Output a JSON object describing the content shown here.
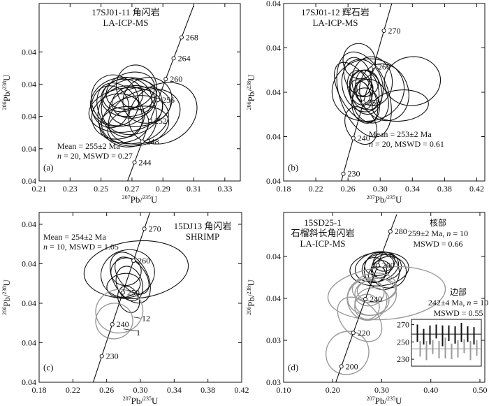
{
  "chart_data": [
    {
      "panel": "(a)",
      "type": "scatter",
      "subtype": "concordia-ellipses",
      "title_lines": [
        "17SJ01-11 角闪岩",
        "LA-ICP-MS"
      ],
      "stats_lines": [
        "Mean = 255±2 Ma",
        "n = 20, MSWD = 0.27"
      ],
      "xlabel": "207Pb/235U",
      "ylabel": "206Pb/238U",
      "xlim": [
        0.21,
        0.34
      ],
      "ylim": [
        0.038,
        0.0435
      ],
      "xticks": [
        0.21,
        0.23,
        0.25,
        0.27,
        0.29,
        0.31,
        0.33
      ],
      "yticks": [
        0.038,
        0.039,
        0.04,
        0.041,
        0.042
      ],
      "concordia_ages": [
        244,
        248,
        252,
        256,
        260,
        264,
        268
      ],
      "concordia_range": [
        238,
        274
      ],
      "ellipses": [
        {
          "cx": 0.263,
          "cy": 0.04045,
          "rx": 0.02,
          "ry": 0.00075,
          "angle": -12
        },
        {
          "cx": 0.266,
          "cy": 0.0402,
          "rx": 0.024,
          "ry": 0.00068,
          "angle": -8
        },
        {
          "cx": 0.27,
          "cy": 0.0403,
          "rx": 0.02,
          "ry": 0.00085,
          "angle": -20
        },
        {
          "cx": 0.261,
          "cy": 0.04,
          "rx": 0.017,
          "ry": 0.0007,
          "angle": -10
        },
        {
          "cx": 0.268,
          "cy": 0.0406,
          "rx": 0.018,
          "ry": 0.0006,
          "angle": -5
        },
        {
          "cx": 0.272,
          "cy": 0.0399,
          "rx": 0.022,
          "ry": 0.00072,
          "angle": -15
        },
        {
          "cx": 0.259,
          "cy": 0.0405,
          "rx": 0.015,
          "ry": 0.0008,
          "angle": -25
        },
        {
          "cx": 0.275,
          "cy": 0.0403,
          "rx": 0.02,
          "ry": 0.0006,
          "angle": -8
        },
        {
          "cx": 0.265,
          "cy": 0.03975,
          "rx": 0.016,
          "ry": 0.00055,
          "angle": -10
        },
        {
          "cx": 0.269,
          "cy": 0.0408,
          "rx": 0.016,
          "ry": 0.00055,
          "angle": -18
        },
        {
          "cx": 0.278,
          "cy": 0.04,
          "rx": 0.024,
          "ry": 0.0008,
          "angle": -22
        },
        {
          "cx": 0.262,
          "cy": 0.0402,
          "rx": 0.013,
          "ry": 0.0009,
          "angle": -30
        },
        {
          "cx": 0.271,
          "cy": 0.04045,
          "rx": 0.014,
          "ry": 0.0005,
          "angle": -10
        },
        {
          "cx": 0.267,
          "cy": 0.04,
          "rx": 0.019,
          "ry": 0.00095,
          "angle": -14
        },
        {
          "cx": 0.256,
          "cy": 0.0403,
          "rx": 0.012,
          "ry": 0.00065,
          "angle": -6
        },
        {
          "cx": 0.28,
          "cy": 0.0405,
          "rx": 0.016,
          "ry": 0.0007,
          "angle": -20
        },
        {
          "cx": 0.29,
          "cy": 0.0401,
          "rx": 0.023,
          "ry": 0.0009,
          "angle": -30
        },
        {
          "cx": 0.274,
          "cy": 0.0397,
          "rx": 0.02,
          "ry": 0.0006,
          "angle": -12
        },
        {
          "cx": 0.273,
          "cy": 0.0409,
          "rx": 0.013,
          "ry": 0.0007,
          "angle": -16
        },
        {
          "cx": 0.264,
          "cy": 0.04065,
          "rx": 0.013,
          "ry": 0.0005,
          "angle": -8
        }
      ]
    },
    {
      "panel": "(b)",
      "type": "scatter",
      "subtype": "concordia-ellipses",
      "title_lines": [
        "17SJ01-12 辉石岩",
        "LA-ICP-MS"
      ],
      "stats_lines": [
        "Mean = 253±2 Ma",
        "n = 20, MSWD = 0.61"
      ],
      "xlabel": "207Pb/235U",
      "ylabel": "206Pb/238U",
      "xlim": [
        0.18,
        0.43
      ],
      "ylim": [
        0.036,
        0.044
      ],
      "xticks": [
        0.18,
        0.22,
        0.26,
        0.3,
        0.34,
        0.38,
        0.42
      ],
      "yticks": [
        0.036,
        0.038,
        0.04,
        0.042,
        0.044
      ],
      "concordia_ages": [
        230,
        240,
        250,
        260,
        270
      ],
      "concordia_range": [
        222,
        284
      ],
      "ellipses": [
        {
          "cx": 0.285,
          "cy": 0.0401,
          "rx": 0.045,
          "ry": 0.0014,
          "angle": -10
        },
        {
          "cx": 0.28,
          "cy": 0.0399,
          "rx": 0.03,
          "ry": 0.002,
          "angle": -20
        },
        {
          "cx": 0.278,
          "cy": 0.0403,
          "rx": 0.025,
          "ry": 0.0012,
          "angle": -15
        },
        {
          "cx": 0.282,
          "cy": 0.04,
          "rx": 0.02,
          "ry": 0.001,
          "angle": -10
        },
        {
          "cx": 0.275,
          "cy": 0.0402,
          "rx": 0.015,
          "ry": 0.0008,
          "angle": -18
        },
        {
          "cx": 0.28,
          "cy": 0.0404,
          "rx": 0.018,
          "ry": 0.0006,
          "angle": -8
        },
        {
          "cx": 0.276,
          "cy": 0.0399,
          "rx": 0.012,
          "ry": 0.0007,
          "angle": -25
        },
        {
          "cx": 0.284,
          "cy": 0.0401,
          "rx": 0.014,
          "ry": 0.0009,
          "angle": -12
        },
        {
          "cx": 0.27,
          "cy": 0.04,
          "rx": 0.02,
          "ry": 0.0015,
          "angle": -30
        },
        {
          "cx": 0.29,
          "cy": 0.0405,
          "rx": 0.025,
          "ry": 0.0011,
          "angle": -5
        },
        {
          "cx": 0.288,
          "cy": 0.0396,
          "rx": 0.022,
          "ry": 0.001,
          "angle": -15
        },
        {
          "cx": 0.272,
          "cy": 0.0407,
          "rx": 0.016,
          "ry": 0.0009,
          "angle": -20
        },
        {
          "cx": 0.282,
          "cy": 0.0394,
          "rx": 0.017,
          "ry": 0.0008,
          "angle": -10
        },
        {
          "cx": 0.278,
          "cy": 0.04,
          "rx": 0.009,
          "ry": 0.0005,
          "angle": -20
        },
        {
          "cx": 0.281,
          "cy": 0.0402,
          "rx": 0.01,
          "ry": 0.0004,
          "angle": -12
        },
        {
          "cx": 0.305,
          "cy": 0.04,
          "rx": 0.03,
          "ry": 0.0013,
          "angle": -18
        },
        {
          "cx": 0.34,
          "cy": 0.0405,
          "rx": 0.035,
          "ry": 0.0011,
          "angle": -8
        },
        {
          "cx": 0.325,
          "cy": 0.0394,
          "rx": 0.035,
          "ry": 0.0007,
          "angle": -5
        },
        {
          "cx": 0.276,
          "cy": 0.0385,
          "rx": 0.018,
          "ry": 0.0009,
          "angle": -30
        },
        {
          "cx": 0.274,
          "cy": 0.0414,
          "rx": 0.02,
          "ry": 0.0008,
          "angle": -15
        }
      ]
    },
    {
      "panel": "(c)",
      "type": "scatter",
      "subtype": "concordia-ellipses",
      "title_lines": [
        "15DJ13 角闪岩",
        "SHRIMP"
      ],
      "stats_lines": [
        "Mean = 254±2 Ma",
        "n = 10, MSWD = 1.05"
      ],
      "xlabel": "207Pb/235U",
      "ylabel": "206Pb/238U",
      "xlim": [
        0.18,
        0.42
      ],
      "ylim": [
        0.035,
        0.0436
      ],
      "xticks": [
        0.18,
        0.22,
        0.26,
        0.3,
        0.34,
        0.38,
        0.42
      ],
      "yticks": [
        0.035,
        0.037,
        0.039,
        0.041,
        0.043
      ],
      "concordia_ages": [
        230,
        240,
        250,
        260,
        270
      ],
      "concordia_range": [
        220,
        278
      ],
      "outlier_labels": [
        "12",
        "1"
      ],
      "ellipses": [
        {
          "cx": 0.295,
          "cy": 0.0407,
          "rx": 0.062,
          "ry": 0.00145,
          "angle": -6,
          "color": "#111"
        },
        {
          "cx": 0.285,
          "cy": 0.0405,
          "rx": 0.032,
          "ry": 0.0012,
          "angle": -15,
          "color": "#111"
        },
        {
          "cx": 0.288,
          "cy": 0.0403,
          "rx": 0.02,
          "ry": 0.0014,
          "angle": -30,
          "color": "#111"
        },
        {
          "cx": 0.287,
          "cy": 0.04,
          "rx": 0.015,
          "ry": 0.0009,
          "angle": -20,
          "color": "#111"
        },
        {
          "cx": 0.283,
          "cy": 0.0406,
          "rx": 0.018,
          "ry": 0.0007,
          "angle": -10,
          "color": "#111"
        },
        {
          "cx": 0.29,
          "cy": 0.0404,
          "rx": 0.015,
          "ry": 0.0011,
          "angle": -40,
          "color": "#111"
        },
        {
          "cx": 0.28,
          "cy": 0.0399,
          "rx": 0.02,
          "ry": 0.0006,
          "angle": -12,
          "color": "#111"
        },
        {
          "cx": 0.286,
          "cy": 0.0392,
          "rx": 0.012,
          "ry": 0.0007,
          "angle": -25,
          "color": "#111"
        },
        {
          "cx": 0.275,
          "cy": 0.0386,
          "rx": 0.028,
          "ry": 0.0011,
          "angle": -10,
          "color": "#9a9a9a"
        },
        {
          "cx": 0.269,
          "cy": 0.0381,
          "rx": 0.022,
          "ry": 0.0009,
          "angle": -15,
          "color": "#9a9a9a"
        }
      ]
    },
    {
      "panel": "(d)",
      "type": "scatter",
      "subtype": "concordia-ellipses",
      "title_lines": [
        "15SD25-1",
        "石榴斜长角闪岩",
        "LA-ICP-MS"
      ],
      "groups": [
        {
          "name_lines": [
            "核部",
            "259±2 Ma, n = 10",
            "MSWD = 0.66"
          ],
          "color": "#111"
        },
        {
          "name_lines": [
            "边部",
            "242±4 Ma, n = 10",
            "MSWD = 0.55"
          ],
          "color": "#9a9a9a"
        }
      ],
      "xlabel": "207Pb/235U",
      "ylabel": "206Pb/238U",
      "xlim": [
        0.1,
        0.51
      ],
      "ylim": [
        0.03,
        0.0462
      ],
      "xticks": [
        0.1,
        0.2,
        0.3,
        0.4,
        0.5
      ],
      "yticks": [
        0.03,
        0.034,
        0.038,
        0.042
      ],
      "concordia_ages": [
        200,
        220,
        240,
        260,
        280
      ],
      "concordia_range": [
        190,
        290
      ],
      "ellipses": [
        {
          "cx": 0.295,
          "cy": 0.0408,
          "rx": 0.06,
          "ry": 0.0016,
          "angle": -5,
          "color": "#111"
        },
        {
          "cx": 0.29,
          "cy": 0.041,
          "rx": 0.045,
          "ry": 0.0014,
          "angle": -15,
          "color": "#111"
        },
        {
          "cx": 0.3,
          "cy": 0.0406,
          "rx": 0.035,
          "ry": 0.0018,
          "angle": -25,
          "color": "#111"
        },
        {
          "cx": 0.295,
          "cy": 0.0412,
          "rx": 0.03,
          "ry": 0.001,
          "angle": -10,
          "color": "#111"
        },
        {
          "cx": 0.285,
          "cy": 0.0407,
          "rx": 0.025,
          "ry": 0.0012,
          "angle": -20,
          "color": "#111"
        },
        {
          "cx": 0.31,
          "cy": 0.041,
          "rx": 0.03,
          "ry": 0.0012,
          "angle": -8,
          "color": "#111"
        },
        {
          "cx": 0.298,
          "cy": 0.0408,
          "rx": 0.02,
          "ry": 0.0008,
          "angle": -15,
          "color": "#111"
        },
        {
          "cx": 0.305,
          "cy": 0.0415,
          "rx": 0.022,
          "ry": 0.0009,
          "angle": -12,
          "color": "#111"
        },
        {
          "cx": 0.29,
          "cy": 0.0403,
          "rx": 0.018,
          "ry": 0.0007,
          "angle": -30,
          "color": "#111"
        },
        {
          "cx": 0.315,
          "cy": 0.0405,
          "rx": 0.035,
          "ry": 0.0015,
          "angle": -10,
          "color": "#111"
        },
        {
          "cx": 0.31,
          "cy": 0.0385,
          "rx": 0.12,
          "ry": 0.0025,
          "angle": -5,
          "color": "#9a9a9a"
        },
        {
          "cx": 0.28,
          "cy": 0.0382,
          "rx": 0.05,
          "ry": 0.0018,
          "angle": -10,
          "color": "#9a9a9a"
        },
        {
          "cx": 0.27,
          "cy": 0.0379,
          "rx": 0.04,
          "ry": 0.002,
          "angle": -20,
          "color": "#9a9a9a"
        },
        {
          "cx": 0.285,
          "cy": 0.039,
          "rx": 0.045,
          "ry": 0.0014,
          "angle": -8,
          "color": "#9a9a9a"
        },
        {
          "cx": 0.275,
          "cy": 0.0385,
          "rx": 0.03,
          "ry": 0.0012,
          "angle": -15,
          "color": "#9a9a9a"
        },
        {
          "cx": 0.28,
          "cy": 0.0377,
          "rx": 0.035,
          "ry": 0.0013,
          "angle": -12,
          "color": "#9a9a9a"
        },
        {
          "cx": 0.29,
          "cy": 0.0388,
          "rx": 0.04,
          "ry": 0.0011,
          "angle": -5,
          "color": "#9a9a9a"
        },
        {
          "cx": 0.27,
          "cy": 0.0372,
          "rx": 0.025,
          "ry": 0.0012,
          "angle": -25,
          "color": "#9a9a9a"
        },
        {
          "cx": 0.255,
          "cy": 0.036,
          "rx": 0.035,
          "ry": 0.0025,
          "angle": -45,
          "color": "#9a9a9a"
        },
        {
          "cx": 0.23,
          "cy": 0.0328,
          "rx": 0.045,
          "ry": 0.002,
          "angle": -50,
          "color": "#9a9a9a"
        }
      ],
      "inset": {
        "type": "bar",
        "ylim": [
          222,
          276
        ],
        "yticks": [
          230,
          250,
          270
        ],
        "reference_lines": [
          259,
          242
        ],
        "series": [
          {
            "name": "核部",
            "color": "#111",
            "centers": [
              260,
              256,
              258,
              262,
              257,
              260,
              258,
              261,
              259,
              257
            ],
            "errors": [
              10,
              9,
              11,
              8,
              12,
              9,
              10,
              11,
              9,
              10
            ]
          },
          {
            "name": "边部",
            "color": "#9a9a9a",
            "centers": [
              242,
              240,
              244,
              241,
              243,
              239,
              242,
              245,
              240,
              243
            ],
            "errors": [
              9,
              11,
              8,
              10,
              12,
              9,
              10,
              8,
              11,
              9
            ]
          }
        ]
      }
    }
  ]
}
